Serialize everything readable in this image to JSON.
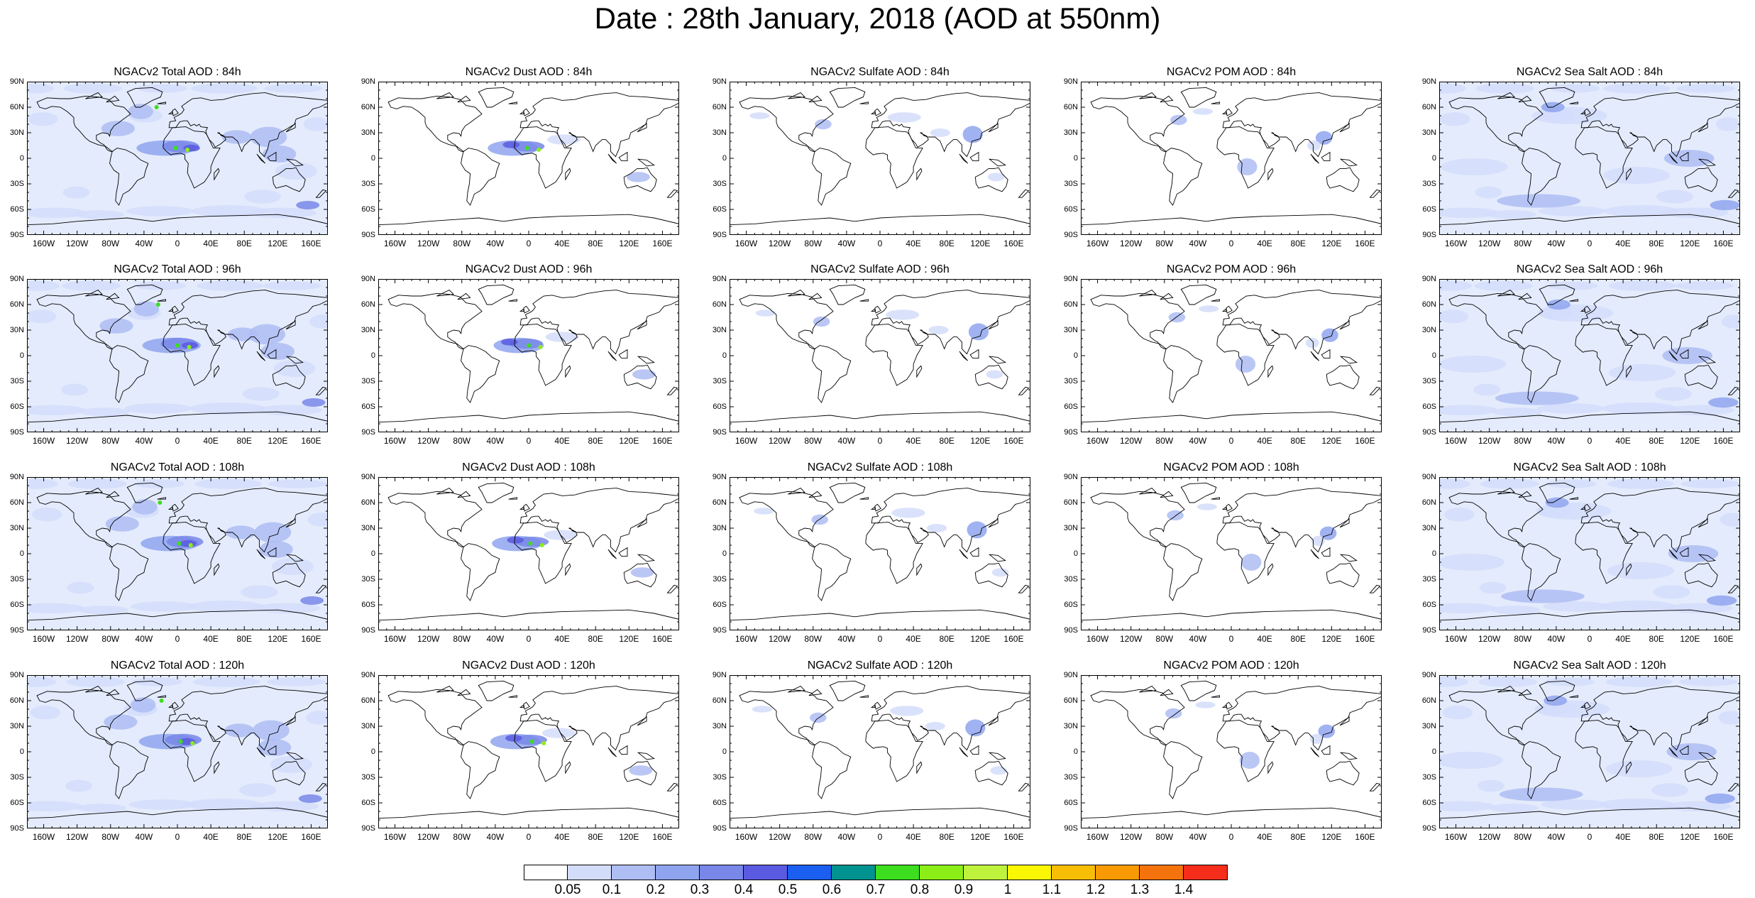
{
  "title": "Date : 28th January, 2018 (AOD at 550nm)",
  "rows": [
    "84h",
    "96h",
    "108h",
    "120h"
  ],
  "columns": [
    "Total",
    "Dust",
    "Sulfate",
    "POM",
    "Sea Salt"
  ],
  "panels": [
    [
      "NGACv2 Total AOD : 84h",
      "NGACv2 Dust AOD : 84h",
      "NGACv2 Sulfate AOD : 84h",
      "NGACv2 POM AOD : 84h",
      "NGACv2 Sea Salt AOD : 84h"
    ],
    [
      "NGACv2 Total AOD : 96h",
      "NGACv2 Dust AOD : 96h",
      "NGACv2 Sulfate AOD : 96h",
      "NGACv2 POM AOD : 96h",
      "NGACv2 Sea Salt AOD : 96h"
    ],
    [
      "NGACv2 Total AOD : 108h",
      "NGACv2 Dust AOD : 108h",
      "NGACv2 Sulfate AOD : 108h",
      "NGACv2 POM AOD : 108h",
      "NGACv2 Sea Salt AOD : 108h"
    ],
    [
      "NGACv2 Total AOD : 120h",
      "NGACv2 Dust AOD : 120h",
      "NGACv2 Sulfate AOD : 120h",
      "NGACv2 POM AOD : 120h",
      "NGACv2 Sea Salt  AOD : 120h"
    ]
  ],
  "lat_ticks": [
    "90N",
    "60N",
    "30N",
    "0",
    "30S",
    "60S",
    "90S"
  ],
  "lon_ticks": [
    "160W",
    "120W",
    "80W",
    "40W",
    "0",
    "40E",
    "80E",
    "120E",
    "160E"
  ],
  "lon_tick_values": [
    -160,
    -120,
    -80,
    -40,
    0,
    40,
    80,
    120,
    160
  ],
  "colorbar": {
    "labels": [
      "0.05",
      "0.1",
      "0.2",
      "0.3",
      "0.4",
      "0.5",
      "0.6",
      "0.7",
      "0.8",
      "0.9",
      "1",
      "1.1",
      "1.2",
      "1.3",
      "1.4"
    ],
    "colors": [
      "#ffffff",
      "#d3ddfa",
      "#aebdf3",
      "#8fa4ee",
      "#7887e8",
      "#5b5be1",
      "#1a5ff0",
      "#00938f",
      "#3cde1f",
      "#8cee17",
      "#bff23d",
      "#fbf704",
      "#f8bd05",
      "#f89a04",
      "#f5730c",
      "#f52d1a"
    ]
  }
}
